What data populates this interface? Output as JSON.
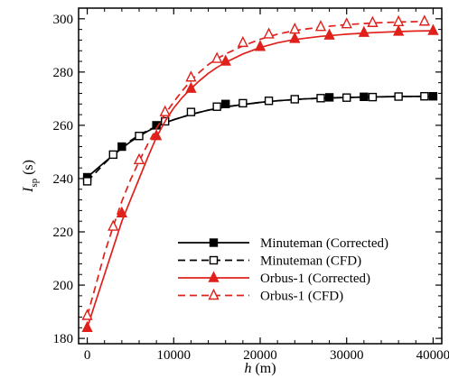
{
  "chart_data": {
    "type": "line",
    "title": "",
    "xlabel": {
      "var": "h",
      "unit": "(m)"
    },
    "ylabel": {
      "var": "I",
      "sub": "sp",
      "unit": "(s)"
    },
    "xlim": [
      -1000,
      41000
    ],
    "ylim": [
      178,
      304
    ],
    "xticks": [
      0,
      10000,
      20000,
      30000,
      40000
    ],
    "yticks": [
      180,
      200,
      220,
      240,
      260,
      280,
      300
    ],
    "xtick_labels": [
      "0",
      "10000",
      "20000",
      "30000",
      "40000"
    ],
    "ytick_labels": [
      "180",
      "200",
      "220",
      "240",
      "260",
      "280",
      "300"
    ],
    "grid": false,
    "legend_position": "lower-right",
    "series": [
      {
        "name": "Minuteman (Corrected)",
        "color": "#000000",
        "dash": "solid",
        "marker": "square-filled",
        "line_x": [
          0,
          1000,
          2000,
          3000,
          4000,
          5000,
          6000,
          7000,
          8000,
          9000,
          10000,
          12000,
          14000,
          16000,
          18000,
          20000,
          22000,
          25000,
          28000,
          32000,
          36000,
          40000
        ],
        "line_y": [
          240.5,
          243.3,
          246.1,
          248.8,
          251.4,
          253.8,
          255.9,
          257.8,
          259.5,
          260.9,
          262.1,
          264.1,
          265.7,
          266.9,
          267.8,
          268.6,
          269.2,
          269.9,
          270.3,
          270.6,
          270.8,
          270.9
        ],
        "marker_x": [
          0,
          4000,
          8000,
          16000,
          28000,
          32000,
          40000
        ],
        "marker_y": [
          240.5,
          252.0,
          260.0,
          268.0,
          270.5,
          270.7,
          270.9
        ]
      },
      {
        "name": "Minuteman (CFD)",
        "color": "#000000",
        "dash": "dashed",
        "marker": "square-open",
        "line_x": [
          0,
          1000,
          2000,
          3000,
          4000,
          5000,
          6000,
          7000,
          8000,
          9000,
          10000,
          12000,
          14000,
          16000,
          18000,
          20000,
          22000,
          25000,
          28000,
          32000,
          36000,
          40000
        ],
        "line_y": [
          239.0,
          242.3,
          245.7,
          248.9,
          251.8,
          254.2,
          256.3,
          258.1,
          259.6,
          260.9,
          262.1,
          264.1,
          265.7,
          266.9,
          267.8,
          268.6,
          269.2,
          269.9,
          270.3,
          270.6,
          270.8,
          270.9
        ],
        "marker_x": [
          0,
          3000,
          6000,
          9000,
          12000,
          15000,
          18000,
          21000,
          24000,
          27000,
          30000,
          33000,
          36000,
          39000
        ],
        "marker_y": [
          239.0,
          249.0,
          256.0,
          261.5,
          265.0,
          267.0,
          268.3,
          269.2,
          269.8,
          270.2,
          270.4,
          270.6,
          270.8,
          270.9
        ]
      },
      {
        "name": "Orbus-1 (Corrected)",
        "color": "#e0201b",
        "dash": "solid",
        "marker": "triangle-filled",
        "line_x": [
          0,
          1000,
          2000,
          3000,
          4000,
          5000,
          6000,
          7000,
          8000,
          9000,
          10000,
          11000,
          12000,
          13000,
          14000,
          15000,
          16000,
          18000,
          20000,
          22000,
          24000,
          27000,
          30000,
          33000,
          36000,
          38000,
          40000
        ],
        "line_y": [
          184.0,
          194.0,
          204.0,
          214.0,
          224.0,
          232.0,
          240.0,
          248.0,
          255.5,
          261.5,
          266.5,
          270.5,
          273.8,
          276.8,
          279.5,
          281.7,
          283.6,
          286.8,
          289.2,
          291.0,
          292.2,
          293.4,
          294.2,
          294.8,
          295.2,
          295.4,
          295.5
        ],
        "marker_x": [
          0,
          4000,
          8000,
          12000,
          16000,
          20000,
          24000,
          28000,
          32000,
          36000,
          40000
        ],
        "marker_y": [
          184.0,
          227.0,
          256.0,
          273.8,
          284.0,
          289.5,
          292.5,
          293.8,
          294.8,
          295.2,
          295.5
        ]
      },
      {
        "name": "Orbus-1 (CFD)",
        "color": "#e0201b",
        "dash": "dashed",
        "marker": "triangle-open",
        "line_x": [
          0,
          1000,
          2000,
          3000,
          4000,
          5000,
          6000,
          7000,
          8000,
          9000,
          10000,
          11000,
          12000,
          13000,
          14000,
          15000,
          16000,
          18000,
          20000,
          22000,
          24000,
          27000,
          30000,
          33000,
          36000,
          39000
        ],
        "line_y": [
          188.5,
          200.0,
          212.0,
          222.0,
          231.5,
          239.5,
          246.5,
          253.0,
          258.8,
          264.2,
          268.8,
          273.0,
          276.8,
          280.0,
          282.8,
          285.0,
          286.8,
          289.8,
          292.3,
          294.2,
          295.6,
          296.9,
          297.8,
          298.4,
          298.8,
          299.0
        ],
        "marker_x": [
          0,
          3000,
          6000,
          9000,
          12000,
          15000,
          18000,
          21000,
          24000,
          27000,
          30000,
          33000,
          36000,
          39000
        ],
        "marker_y": [
          188.5,
          222.0,
          247.0,
          265.0,
          278.0,
          285.0,
          291.0,
          294.2,
          296.0,
          297.0,
          298.0,
          298.5,
          298.8,
          299.0
        ]
      }
    ]
  }
}
